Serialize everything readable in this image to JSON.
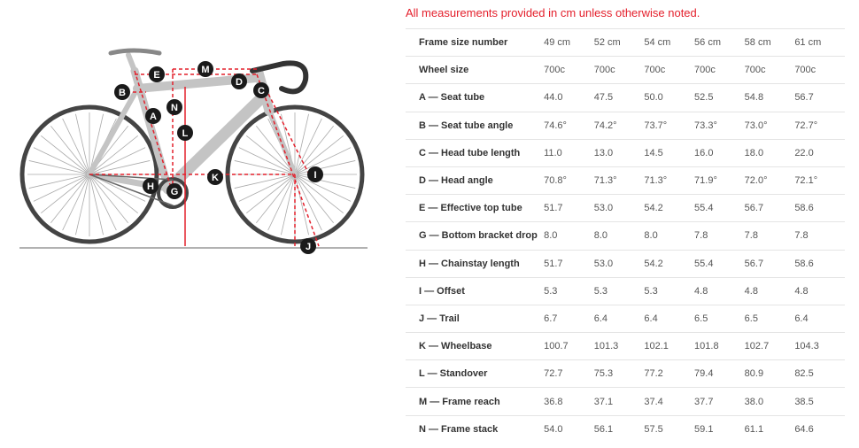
{
  "note": "All measurements provided in cm unless otherwise noted.",
  "diagram_labels": [
    "A",
    "B",
    "C",
    "D",
    "E",
    "G",
    "H",
    "I",
    "J",
    "K",
    "L",
    "M",
    "N"
  ],
  "colors": {
    "accent": "#e4202c",
    "frame": "#c8c8c8",
    "marker": "#1a1a1a"
  },
  "geometry": {
    "header": {
      "label": "Frame size number",
      "values": [
        "49 cm",
        "52 cm",
        "54 cm",
        "56 cm",
        "58 cm",
        "61 cm"
      ]
    },
    "rows": [
      {
        "label": "Wheel size",
        "values": [
          "700c",
          "700c",
          "700c",
          "700c",
          "700c",
          "700c"
        ]
      },
      {
        "label": "A — Seat tube",
        "values": [
          "44.0",
          "47.5",
          "50.0",
          "52.5",
          "54.8",
          "56.7"
        ]
      },
      {
        "label": "B — Seat tube angle",
        "values": [
          "74.6°",
          "74.2°",
          "73.7°",
          "73.3°",
          "73.0°",
          "72.7°"
        ]
      },
      {
        "label": "C — Head tube length",
        "values": [
          "11.0",
          "13.0",
          "14.5",
          "16.0",
          "18.0",
          "22.0"
        ]
      },
      {
        "label": "D — Head angle",
        "values": [
          "70.8°",
          "71.3°",
          "71.3°",
          "71.9°",
          "72.0°",
          "72.1°"
        ]
      },
      {
        "label": "E — Effective top tube",
        "values": [
          "51.7",
          "53.0",
          "54.2",
          "55.4",
          "56.7",
          "58.6"
        ]
      },
      {
        "label": "G — Bottom bracket drop",
        "values": [
          "8.0",
          "8.0",
          "8.0",
          "7.8",
          "7.8",
          "7.8"
        ]
      },
      {
        "label": "H — Chainstay length",
        "values": [
          "51.7",
          "53.0",
          "54.2",
          "55.4",
          "56.7",
          "58.6"
        ]
      },
      {
        "label": "I — Offset",
        "values": [
          "5.3",
          "5.3",
          "5.3",
          "4.8",
          "4.8",
          "4.8"
        ]
      },
      {
        "label": "J — Trail",
        "values": [
          "6.7",
          "6.4",
          "6.4",
          "6.5",
          "6.5",
          "6.4"
        ]
      },
      {
        "label": "K — Wheelbase",
        "values": [
          "100.7",
          "101.3",
          "102.1",
          "101.8",
          "102.7",
          "104.3"
        ]
      },
      {
        "label": "L — Standover",
        "values": [
          "72.7",
          "75.3",
          "77.2",
          "79.4",
          "80.9",
          "82.5"
        ]
      },
      {
        "label": "M — Frame reach",
        "values": [
          "36.8",
          "37.1",
          "37.4",
          "37.7",
          "38.0",
          "38.5"
        ]
      },
      {
        "label": "N — Frame stack",
        "values": [
          "54.0",
          "56.1",
          "57.5",
          "59.1",
          "61.1",
          "64.6"
        ]
      }
    ]
  }
}
